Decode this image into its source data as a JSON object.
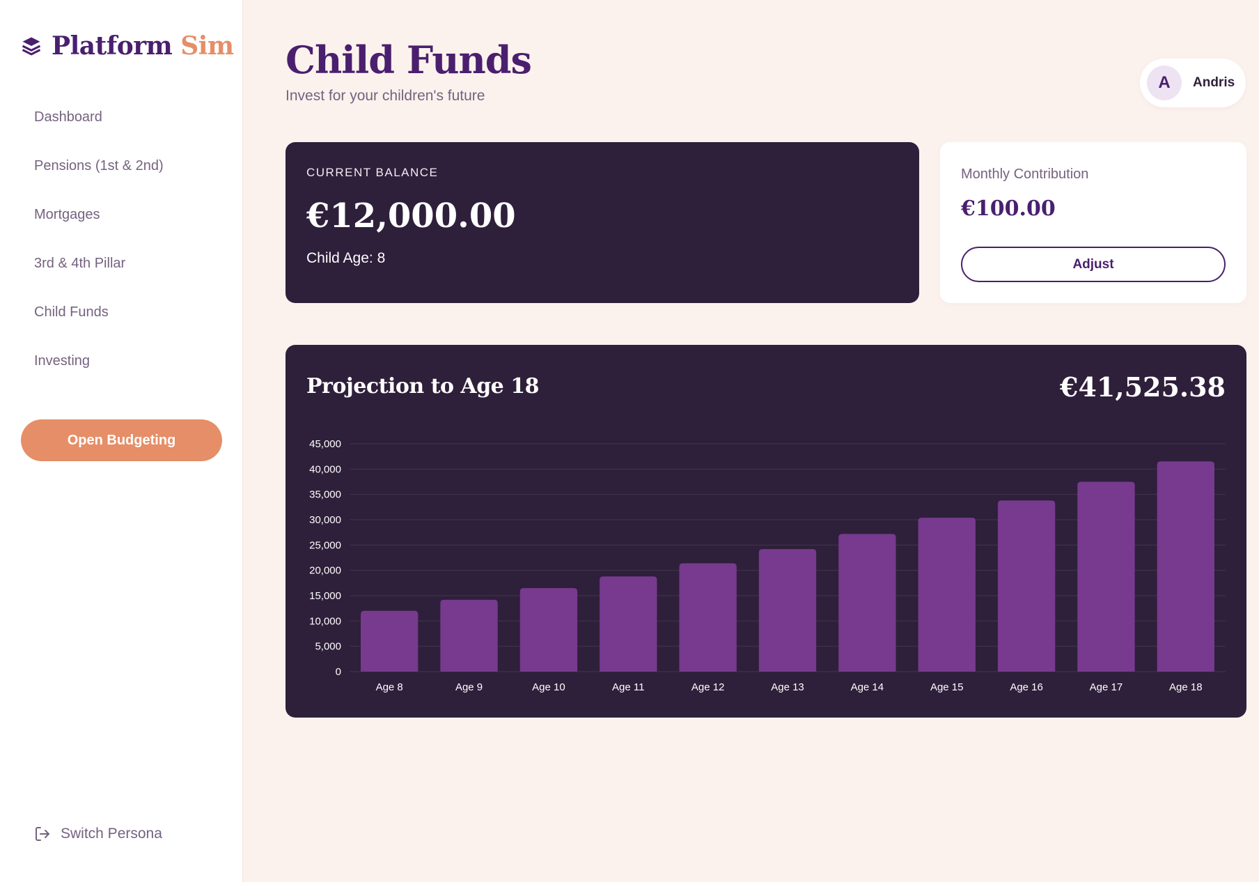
{
  "sidebar": {
    "logo_part1": "Platform",
    "logo_part2": "Sim",
    "nav": [
      {
        "label": "Dashboard"
      },
      {
        "label": "Pensions (1st & 2nd)"
      },
      {
        "label": "Mortgages"
      },
      {
        "label": "3rd & 4th Pillar"
      },
      {
        "label": "Child Funds"
      },
      {
        "label": "Investing"
      }
    ],
    "budget_button": "Open Budgeting",
    "switch_persona": "Switch Persona"
  },
  "header": {
    "title": "Child Funds",
    "subtitle": "Invest for your children's future",
    "user_initial": "A",
    "user_name": "Andris"
  },
  "balance": {
    "label": "CURRENT BALANCE",
    "value": "€12,000.00",
    "child_age": "Child Age: 8"
  },
  "contribution": {
    "label": "Monthly Contribution",
    "value": "€100.00",
    "button": "Adjust"
  },
  "projection": {
    "title": "Projection to Age 18",
    "total": "€41,525.38"
  },
  "colors": {
    "primary": "#4a1f6e",
    "accent": "#e58e67",
    "dark_card": "#2e1f3a",
    "bar": "#773a8e",
    "page_bg": "#fcf2ed"
  },
  "chart_data": {
    "type": "bar",
    "categories": [
      "Age 8",
      "Age 9",
      "Age 10",
      "Age 11",
      "Age 12",
      "Age 13",
      "Age 14",
      "Age 15",
      "Age 16",
      "Age 17",
      "Age 18"
    ],
    "values": [
      12000,
      14200,
      16500,
      18800,
      21400,
      24200,
      27200,
      30400,
      33800,
      37500,
      41525.38
    ],
    "ylim": [
      0,
      45000
    ],
    "yticks": [
      "45,000",
      "40,000",
      "35,000",
      "30,000",
      "25,000",
      "20,000",
      "15,000",
      "10,000",
      "5,000",
      "0"
    ],
    "grid": true,
    "legend": false
  }
}
